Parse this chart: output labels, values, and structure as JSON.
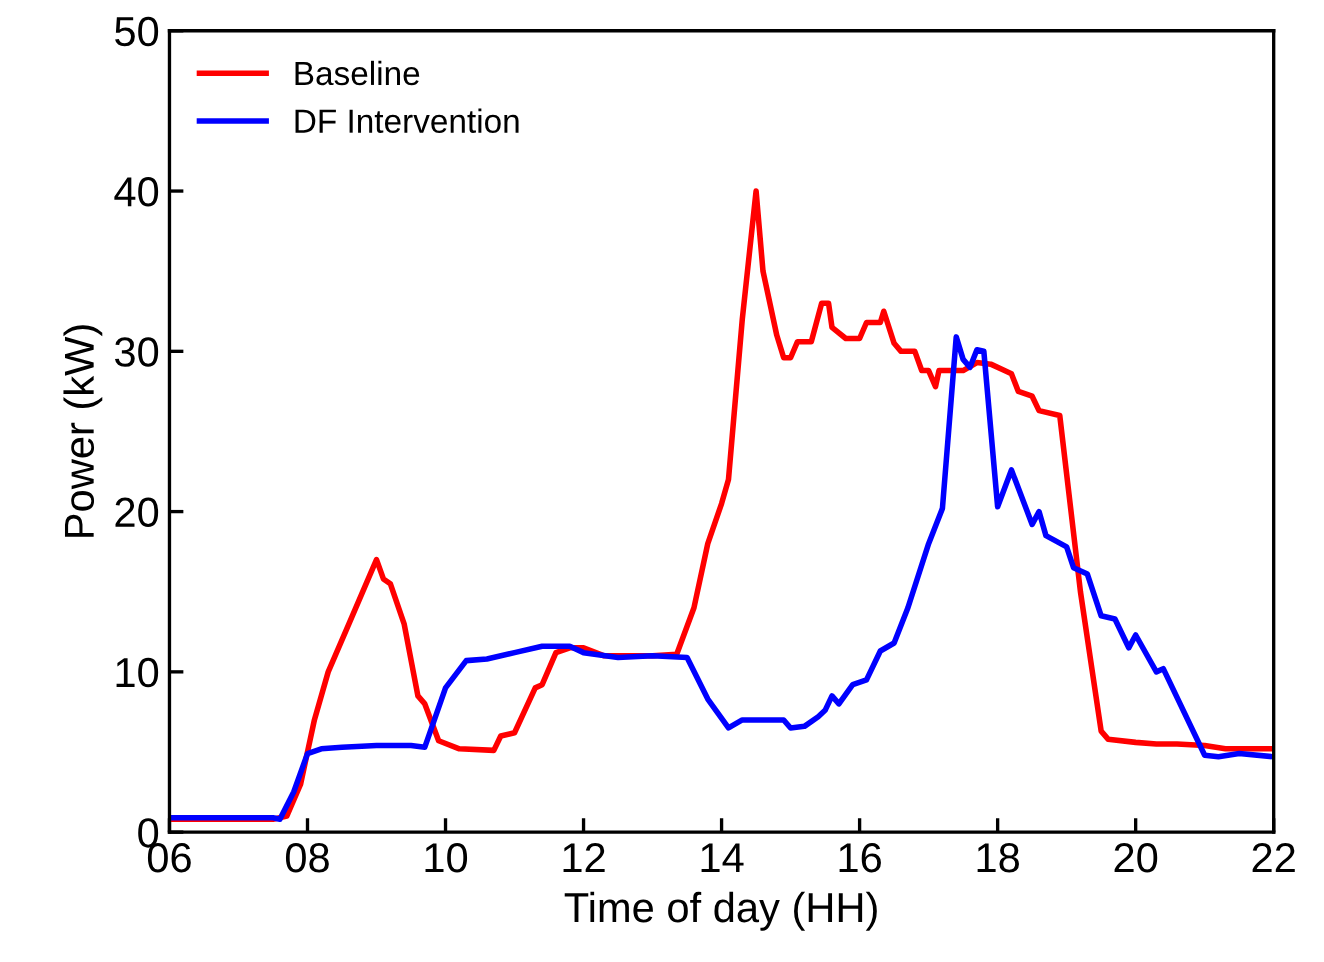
{
  "chart_data": {
    "type": "line",
    "xlabel": "Time of day (HH)",
    "ylabel": "Power (kW)",
    "xlim": [
      6,
      22
    ],
    "ylim": [
      0,
      50
    ],
    "xticks": [
      {
        "value": 6,
        "label": "06"
      },
      {
        "value": 8,
        "label": "08"
      },
      10,
      12,
      14,
      16,
      18,
      20,
      22
    ],
    "yticks": [
      0,
      10,
      20,
      30,
      40,
      50
    ],
    "grid": false,
    "legend": "top left",
    "marker": "none",
    "line_style": "solid",
    "series": [
      {
        "name": "Baseline",
        "color": "#ff0000",
        "x": [
          6.0,
          7.5,
          7.7,
          7.9,
          8.1,
          8.3,
          8.4,
          8.6,
          8.9,
          9.0,
          9.1,
          9.2,
          9.4,
          9.6,
          9.7,
          9.9,
          10.2,
          10.7,
          10.8,
          11.0,
          11.3,
          11.4,
          11.6,
          11.8,
          12.0,
          12.3,
          13.0,
          13.35,
          13.6,
          13.8,
          14.0,
          14.1,
          14.3,
          14.5,
          14.6,
          14.8,
          14.9,
          15.0,
          15.1,
          15.3,
          15.45,
          15.55,
          15.6,
          15.8,
          16.0,
          16.1,
          16.3,
          16.35,
          16.5,
          16.6,
          16.8,
          16.9,
          17.0,
          17.1,
          17.15,
          17.5,
          17.7,
          17.9,
          18.1,
          18.2,
          18.3,
          18.5,
          18.6,
          18.9,
          19.2,
          19.5,
          19.6,
          20.0,
          20.3,
          20.6,
          21.0,
          21.3,
          22.0
        ],
        "values": [
          0.8,
          0.8,
          1.0,
          3,
          7,
          10,
          11,
          13,
          16,
          17,
          15.8,
          15.5,
          13,
          8.5,
          8,
          5.7,
          5.2,
          5.1,
          6,
          6.2,
          9,
          9.2,
          11.2,
          11.5,
          11.5,
          11.0,
          11.0,
          11.1,
          14,
          18,
          20.5,
          22,
          32,
          40,
          35,
          31,
          29.6,
          29.6,
          30.6,
          30.6,
          33,
          33,
          31.5,
          30.8,
          30.8,
          31.8,
          31.8,
          32.5,
          30.5,
          30.0,
          30.0,
          28.8,
          28.8,
          27.8,
          28.8,
          28.8,
          29.3,
          29.2,
          28.8,
          28.6,
          27.5,
          27.2,
          26.3,
          26.0,
          15,
          6.3,
          5.8,
          5.6,
          5.5,
          5.5,
          5.4,
          5.2,
          5.2
        ]
      },
      {
        "name": "DF Intervention",
        "color": "#0000ff",
        "x": [
          6.0,
          7.5,
          7.6,
          7.8,
          8.0,
          8.2,
          8.5,
          9.0,
          9.5,
          9.7,
          10.0,
          10.3,
          10.6,
          11.0,
          11.4,
          11.8,
          12.0,
          12.5,
          13.0,
          13.5,
          13.8,
          14.1,
          14.3,
          14.9,
          15.0,
          15.2,
          15.4,
          15.5,
          15.6,
          15.7,
          15.9,
          16.1,
          16.3,
          16.5,
          16.7,
          17.0,
          17.2,
          17.4,
          17.5,
          17.6,
          17.7,
          17.8,
          18.0,
          18.2,
          18.5,
          18.6,
          18.7,
          19.0,
          19.1,
          19.3,
          19.5,
          19.7,
          19.9,
          20.0,
          20.3,
          20.4,
          21.0,
          21.2,
          21.5,
          22.0
        ],
        "values": [
          0.9,
          0.9,
          0.8,
          2.5,
          4.9,
          5.2,
          5.3,
          5.4,
          5.4,
          5.3,
          9,
          10.7,
          10.8,
          11.2,
          11.6,
          11.6,
          11.2,
          10.9,
          11.0,
          10.9,
          8.3,
          6.5,
          7.0,
          7.0,
          6.5,
          6.6,
          7.2,
          7.6,
          8.5,
          8.0,
          9.2,
          9.5,
          11.3,
          11.8,
          14,
          18,
          20.2,
          30.9,
          29.5,
          29,
          30.1,
          30,
          20.3,
          22.6,
          19.2,
          20.0,
          18.5,
          17.8,
          16.5,
          16.1,
          13.5,
          13.3,
          11.5,
          12.3,
          10.0,
          10.2,
          4.8,
          4.7,
          4.9,
          4.7
        ]
      }
    ]
  }
}
